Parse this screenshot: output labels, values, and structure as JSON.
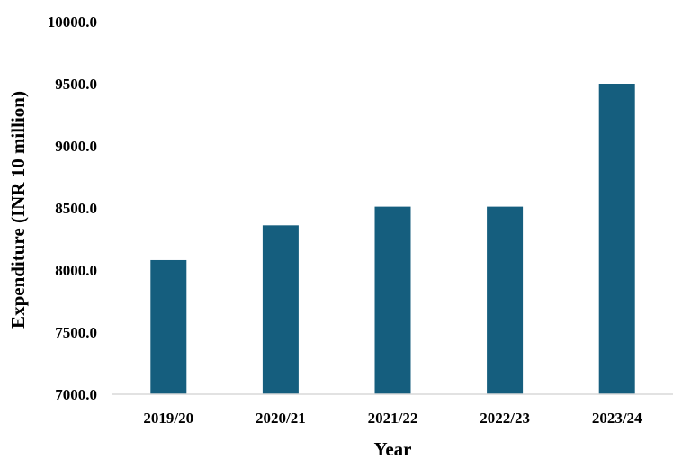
{
  "chart_data": {
    "type": "bar",
    "title": "",
    "xlabel": "Year",
    "ylabel": "Expenditure  (INR 10 million)",
    "categories": [
      "2019/20",
      "2020/21",
      "2021/22",
      "2022/23",
      "2023/24"
    ],
    "values": [
      8080,
      8360,
      8510,
      8510,
      9500
    ],
    "ylim": [
      7000,
      10000
    ],
    "yticks": [
      "7000.0",
      "7500.0",
      "8000.0",
      "8500.0",
      "9000.0",
      "9500.0",
      "10000.0"
    ],
    "grid": false,
    "legend": "none",
    "bar_color": "#155e7e",
    "axis_color": "#d9d9d9"
  }
}
